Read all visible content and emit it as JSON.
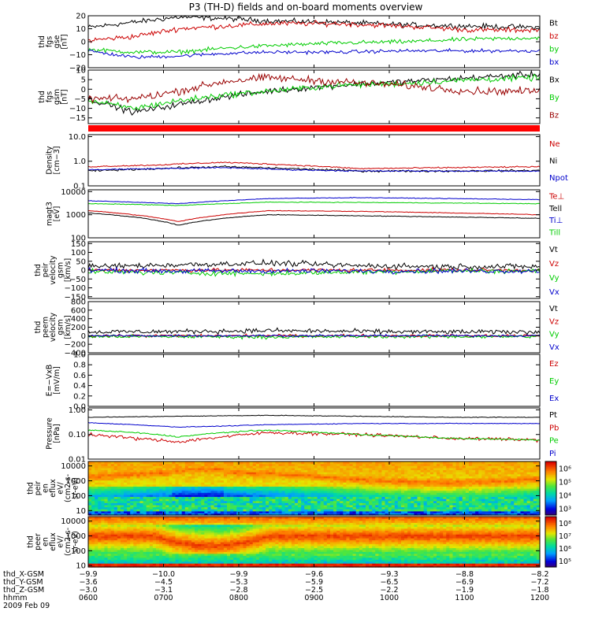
{
  "title": "P3 (TH-D) fields and on-board moments overview",
  "chart_data": [
    {
      "type": "line",
      "ylabel": [
        "thd",
        "fgs",
        "gse",
        "[nT]"
      ],
      "ylim": [
        -20,
        20
      ],
      "yticks": [
        "20",
        "10",
        "0",
        "−10",
        "−20"
      ],
      "ytick_values": [
        20,
        10,
        0,
        -10,
        -20
      ],
      "series": [
        {
          "name": "Bt",
          "color": "#000000",
          "t": [
            0,
            0.1,
            0.2,
            0.3,
            0.4,
            0.55,
            0.7,
            0.85,
            1
          ],
          "values": [
            11,
            15,
            19,
            18,
            16,
            15,
            13,
            12,
            11
          ],
          "noise": 1.5
        },
        {
          "name": "bz",
          "color": "#cc0000",
          "t": [
            0,
            0.1,
            0.2,
            0.3,
            0.4,
            0.55,
            0.7,
            0.85,
            1
          ],
          "values": [
            1,
            4,
            10,
            12,
            14,
            14,
            12,
            9,
            9
          ],
          "noise": 1.5
        },
        {
          "name": "by",
          "color": "#00cc00",
          "t": [
            0,
            0.1,
            0.2,
            0.3,
            0.4,
            0.55,
            0.7,
            0.85,
            1
          ],
          "values": [
            -6,
            -8,
            -8,
            -5,
            -3,
            -1,
            0,
            2,
            3
          ],
          "noise": 1.2
        },
        {
          "name": "bx",
          "color": "#0000cc",
          "t": [
            0,
            0.1,
            0.2,
            0.3,
            0.4,
            0.55,
            0.7,
            0.85,
            1
          ],
          "values": [
            -7,
            -12,
            -11,
            -9,
            -8,
            -8,
            -7,
            -7,
            -7
          ],
          "noise": 1
        }
      ]
    },
    {
      "type": "line",
      "ylabel": [
        "thd",
        "fgs",
        "gsm",
        "[nT]"
      ],
      "ylim": [
        -18,
        10
      ],
      "yticks": [
        "10",
        "5",
        "0",
        "−5",
        "−10",
        "−15"
      ],
      "ytick_values": [
        10,
        5,
        0,
        -5,
        -10,
        -15
      ],
      "series": [
        {
          "name": "Bx",
          "color": "#000000",
          "t": [
            0,
            0.1,
            0.2,
            0.3,
            0.4,
            0.55,
            0.7,
            0.85,
            1
          ],
          "values": [
            -5,
            -12,
            -8,
            -4,
            -1,
            2,
            4,
            6,
            8
          ],
          "noise": 1.2
        },
        {
          "name": "By",
          "color": "#00cc00",
          "t": [
            0,
            0.1,
            0.2,
            0.3,
            0.4,
            0.55,
            0.7,
            0.85,
            1
          ],
          "values": [
            -6,
            -10,
            -6,
            -3,
            -1,
            2,
            3,
            5,
            6
          ],
          "noise": 1.2
        },
        {
          "name": "Bz",
          "color": "#990000",
          "t": [
            0,
            0.1,
            0.2,
            0.3,
            0.4,
            0.55,
            0.7,
            0.85,
            1
          ],
          "values": [
            -5,
            -5,
            -1,
            4,
            6,
            4,
            2,
            -1,
            -1
          ],
          "noise": 1.5
        }
      ]
    },
    {
      "type": "line",
      "ylog": true,
      "ylabel": [
        "Density",
        "[cm−3]"
      ],
      "ylim": [
        0.1,
        12
      ],
      "yticks": [
        "10.0",
        "1.0",
        "0.1"
      ],
      "ytick_values": [
        10,
        1,
        0.1
      ],
      "series": [
        {
          "name": "Ne",
          "color": "#cc0000",
          "t": [
            0,
            0.15,
            0.3,
            0.45,
            0.6,
            0.8,
            1
          ],
          "values": [
            0.6,
            0.7,
            0.9,
            0.7,
            0.5,
            0.55,
            0.6
          ],
          "noise": 0.02
        },
        {
          "name": "Ni",
          "color": "#000000",
          "t": [
            0,
            0.15,
            0.3,
            0.45,
            0.6,
            0.8,
            1
          ],
          "values": [
            0.4,
            0.5,
            0.6,
            0.5,
            0.4,
            0.4,
            0.42
          ],
          "noise": 0.03
        },
        {
          "name": "Npot",
          "color": "#0000cc",
          "t": [
            0,
            0.15,
            0.3,
            0.45,
            0.6,
            0.8,
            1
          ],
          "values": [
            0.45,
            0.5,
            0.55,
            0.45,
            0.4,
            0.4,
            0.4
          ],
          "noise": 0.02
        }
      ]
    },
    {
      "type": "line",
      "ylog": true,
      "ylabel": [
        "magt3",
        "[eV]"
      ],
      "ylim": [
        100,
        12000
      ],
      "yticks": [
        "10000",
        "1000",
        "100"
      ],
      "ytick_values": [
        10000,
        1000,
        100
      ],
      "series": [
        {
          "name": "Te⊥",
          "color": "#cc0000",
          "t": [
            0,
            0.1,
            0.2,
            0.3,
            0.4,
            0.6,
            0.8,
            1
          ],
          "values": [
            1500,
            1000,
            500,
            1000,
            1500,
            1400,
            1200,
            1000
          ],
          "noise": 0.01
        },
        {
          "name": "Tell",
          "color": "#000000",
          "t": [
            0,
            0.1,
            0.2,
            0.3,
            0.4,
            0.6,
            0.8,
            1
          ],
          "values": [
            1200,
            800,
            350,
            700,
            1000,
            900,
            800,
            700
          ],
          "noise": 0.01
        },
        {
          "name": "Ti⊥",
          "color": "#0000cc",
          "t": [
            0,
            0.1,
            0.2,
            0.3,
            0.4,
            0.6,
            0.8,
            1
          ],
          "values": [
            4000,
            3500,
            3000,
            4000,
            5000,
            5500,
            5000,
            4500
          ],
          "noise": 0.01
        },
        {
          "name": "Till",
          "color": "#00cc00",
          "t": [
            0,
            0.1,
            0.2,
            0.3,
            0.4,
            0.6,
            0.8,
            1
          ],
          "values": [
            3000,
            2800,
            2500,
            3000,
            3500,
            3400,
            3200,
            3000
          ],
          "noise": 0.01
        }
      ]
    },
    {
      "type": "line",
      "ylabel": [
        "thd",
        "peir",
        "velocity",
        "gsm",
        "[km/s]"
      ],
      "ylim": [
        -160,
        160
      ],
      "yticks": [
        "150",
        "100",
        "50",
        "0",
        "−50",
        "−100",
        "−150"
      ],
      "ytick_values": [
        150,
        100,
        50,
        0,
        -50,
        -100,
        -150
      ],
      "series": [
        {
          "name": "Vt",
          "color": "#000000",
          "t": [
            0,
            0.2,
            0.4,
            0.6,
            0.8,
            1
          ],
          "values": [
            20,
            30,
            40,
            25,
            20,
            20
          ],
          "noise": 12
        },
        {
          "name": "Vz",
          "color": "#cc0000",
          "t": [
            0,
            0.2,
            0.4,
            0.6,
            0.8,
            1
          ],
          "values": [
            0,
            0,
            0,
            0,
            0,
            0
          ],
          "noise": 8
        },
        {
          "name": "Vy",
          "color": "#00cc00",
          "t": [
            0,
            0.2,
            0.4,
            0.6,
            0.8,
            1
          ],
          "values": [
            -10,
            -15,
            -20,
            -10,
            -5,
            -5
          ],
          "noise": 10
        },
        {
          "name": "Vx",
          "color": "#0000cc",
          "t": [
            0,
            0.2,
            0.4,
            0.6,
            0.8,
            1
          ],
          "values": [
            0,
            -5,
            -5,
            -5,
            -5,
            -5
          ],
          "noise": 10
        }
      ]
    },
    {
      "type": "line",
      "ylabel": [
        "thd",
        "peem",
        "velocity",
        "gsm",
        "[km/s]"
      ],
      "ylim": [
        -400,
        800
      ],
      "yticks": [
        "800",
        "600",
        "400",
        "200",
        "0",
        "−200",
        "−400"
      ],
      "ytick_values": [
        800,
        600,
        400,
        200,
        0,
        -200,
        -400
      ],
      "series": [
        {
          "name": "Vt",
          "color": "#000000",
          "t": [
            0,
            0.2,
            0.4,
            0.6,
            0.8,
            1
          ],
          "values": [
            90,
            100,
            120,
            100,
            90,
            90
          ],
          "noise": 40
        },
        {
          "name": "Vz",
          "color": "#cc0000",
          "t": [
            0,
            0.2,
            0.4,
            0.6,
            0.8,
            1
          ],
          "values": [
            0,
            0,
            0,
            0,
            0,
            0
          ],
          "noise": 25
        },
        {
          "name": "Vy",
          "color": "#00cc00",
          "t": [
            0,
            0.2,
            0.4,
            0.6,
            0.8,
            1
          ],
          "values": [
            -20,
            -20,
            -30,
            -20,
            -20,
            -20
          ],
          "noise": 30
        },
        {
          "name": "Vx",
          "color": "#0000cc",
          "t": [
            0,
            0.2,
            0.4,
            0.6,
            0.8,
            1
          ],
          "values": [
            0,
            0,
            0,
            0,
            0,
            0
          ],
          "noise": 20
        }
      ]
    },
    {
      "type": "line",
      "ylabel": [
        "E=−VxB",
        "[mV/m]"
      ],
      "ylim": [
        0,
        1
      ],
      "yticks": [
        "1.0",
        "0.8",
        "0.6",
        "0.4",
        "0.2",
        "0.0"
      ],
      "ytick_values": [
        1,
        0.8,
        0.6,
        0.4,
        0.2,
        0
      ],
      "series": [
        {
          "name": "Ez",
          "color": "#cc0000",
          "t": [],
          "values": []
        },
        {
          "name": "Ey",
          "color": "#00cc00",
          "t": [],
          "values": []
        },
        {
          "name": "Ex",
          "color": "#0000cc",
          "t": [],
          "values": []
        }
      ]
    },
    {
      "type": "line",
      "ylog": true,
      "ylabel": [
        "Pressure",
        "[nPa]"
      ],
      "ylim": [
        0.01,
        1.2
      ],
      "yticks": [
        "1.00",
        "0.10",
        "0.01"
      ],
      "ytick_values": [
        1,
        0.1,
        0.01
      ],
      "series": [
        {
          "name": "Pt",
          "color": "#000000",
          "t": [
            0,
            0.2,
            0.4,
            0.6,
            0.8,
            1
          ],
          "values": [
            0.5,
            0.55,
            0.6,
            0.55,
            0.5,
            0.5
          ],
          "noise": 0.01
        },
        {
          "name": "Pb",
          "color": "#cc0000",
          "t": [
            0,
            0.1,
            0.2,
            0.3,
            0.4,
            0.6,
            0.8,
            1
          ],
          "values": [
            0.1,
            0.07,
            0.05,
            0.08,
            0.12,
            0.1,
            0.07,
            0.06
          ],
          "noise": 0.05
        },
        {
          "name": "Pe",
          "color": "#00cc00",
          "t": [
            0,
            0.1,
            0.2,
            0.3,
            0.4,
            0.6,
            0.8,
            1
          ],
          "values": [
            0.15,
            0.12,
            0.08,
            0.12,
            0.15,
            0.1,
            0.07,
            0.06
          ],
          "noise": 0.02
        },
        {
          "name": "Pi",
          "color": "#0000cc",
          "t": [
            0,
            0.1,
            0.2,
            0.3,
            0.4,
            0.6,
            0.8,
            1
          ],
          "values": [
            0.3,
            0.25,
            0.2,
            0.22,
            0.25,
            0.28,
            0.28,
            0.28
          ],
          "noise": 0.01
        }
      ]
    },
    {
      "type": "heatmap",
      "ylog": true,
      "ylabel": [
        "thd",
        "peir",
        "en",
        "eflux",
        "eV/",
        "(cm2-s-",
        "sr-eV)"
      ],
      "ylim": [
        5,
        20000
      ],
      "yticks": [
        "10000",
        "1000",
        "100",
        "10"
      ],
      "ytick_values": [
        10000,
        1000,
        100,
        10
      ],
      "colorbar_labels": [
        "10⁶",
        "10⁵",
        "10⁴",
        "10³"
      ],
      "colorbar_range": [
        100,
        3000000
      ]
    },
    {
      "type": "heatmap",
      "ylog": true,
      "ylabel": [
        "thd",
        "peer",
        "en",
        "eflux",
        "eV/",
        "(cm2-s-",
        "sr-eV)"
      ],
      "ylim": [
        8,
        20000
      ],
      "yticks": [
        "10000",
        "1000",
        "100",
        "10"
      ],
      "ytick_values": [
        10000,
        1000,
        100,
        10
      ],
      "colorbar_labels": [
        "10⁸",
        "10⁷",
        "10⁶",
        "10⁵"
      ],
      "colorbar_range": [
        30000,
        200000000
      ]
    }
  ],
  "time_axis": {
    "rows": [
      {
        "label": "thd_X-GSM",
        "values": [
          "−9.9",
          "−10.0",
          "−9.9",
          "−9.6",
          "−9.3",
          "−8.8",
          "−8.2"
        ]
      },
      {
        "label": "thd_Y-GSM",
        "values": [
          "−3.6",
          "−4.5",
          "−5.3",
          "−5.9",
          "−6.5",
          "−6.9",
          "−7.2"
        ]
      },
      {
        "label": "thd_Z-GSM",
        "values": [
          "−3.0",
          "−3.1",
          "−2.8",
          "−2.5",
          "−2.2",
          "−1.9",
          "−1.8"
        ]
      },
      {
        "label": "hhmm",
        "values": [
          "0600",
          "0700",
          "0800",
          "0900",
          "1000",
          "1100",
          "1200"
        ]
      }
    ],
    "date": "2009 Feb 09"
  },
  "colors": {
    "flag_bar": "#ff0000"
  }
}
